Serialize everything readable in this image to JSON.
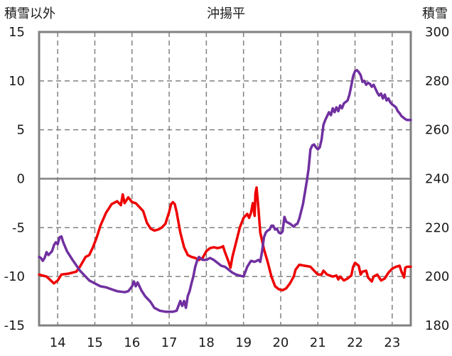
{
  "chart_data": {
    "type": "line",
    "title": "沖揚平",
    "left_axis_label": "積雪以外",
    "right_axis_label": "積雪",
    "x_range": [
      13.5,
      23.5
    ],
    "x_ticks": [
      14,
      15,
      16,
      17,
      18,
      19,
      20,
      21,
      22,
      23
    ],
    "x_tick_labels": [
      "14",
      "15",
      "16",
      "17",
      "18",
      "19",
      "20",
      "21",
      "22",
      "23"
    ],
    "ylim_left": [
      -15,
      15
    ],
    "y_ticks_left": [
      15,
      10,
      5,
      0,
      -5,
      -10,
      -15
    ],
    "y_tick_labels_left": [
      "15",
      "10",
      "5",
      "0",
      "-5",
      "-10",
      "-15"
    ],
    "ylim_right": [
      180,
      300
    ],
    "y_ticks_right": [
      300,
      280,
      260,
      240,
      220,
      200,
      180
    ],
    "y_tick_labels_right": [
      "300",
      "280",
      "260",
      "240",
      "220",
      "200",
      "180"
    ],
    "grid": {
      "vertical": "dashed",
      "horizontal": "dashed",
      "zero_line": "solid"
    },
    "series": [
      {
        "axis": "left",
        "color": "#ee0000",
        "points": [
          [
            13.5,
            -9.8
          ],
          [
            13.7,
            -10.0
          ],
          [
            13.9,
            -10.7
          ],
          [
            14.0,
            -10.4
          ],
          [
            14.1,
            -9.8
          ],
          [
            14.3,
            -9.7
          ],
          [
            14.5,
            -9.5
          ],
          [
            14.6,
            -9.0
          ],
          [
            14.75,
            -8.0
          ],
          [
            14.85,
            -7.8
          ],
          [
            14.95,
            -7.0
          ],
          [
            15.05,
            -6.0
          ],
          [
            15.15,
            -4.8
          ],
          [
            15.3,
            -3.5
          ],
          [
            15.45,
            -2.6
          ],
          [
            15.6,
            -2.3
          ],
          [
            15.7,
            -2.7
          ],
          [
            15.75,
            -1.6
          ],
          [
            15.8,
            -2.5
          ],
          [
            15.9,
            -1.9
          ],
          [
            16.0,
            -2.4
          ],
          [
            16.1,
            -2.5
          ],
          [
            16.2,
            -2.9
          ],
          [
            16.3,
            -3.3
          ],
          [
            16.4,
            -4.5
          ],
          [
            16.5,
            -5.1
          ],
          [
            16.6,
            -5.3
          ],
          [
            16.7,
            -5.2
          ],
          [
            16.8,
            -5.0
          ],
          [
            16.9,
            -4.6
          ],
          [
            17.0,
            -3.4
          ],
          [
            17.05,
            -2.6
          ],
          [
            17.1,
            -2.4
          ],
          [
            17.15,
            -2.6
          ],
          [
            17.2,
            -3.4
          ],
          [
            17.3,
            -5.5
          ],
          [
            17.4,
            -7.0
          ],
          [
            17.5,
            -7.8
          ],
          [
            17.6,
            -8.0
          ],
          [
            17.7,
            -8.1
          ],
          [
            17.8,
            -8.3
          ],
          [
            17.9,
            -8.1
          ],
          [
            18.0,
            -7.4
          ],
          [
            18.1,
            -7.1
          ],
          [
            18.2,
            -7.0
          ],
          [
            18.3,
            -7.1
          ],
          [
            18.4,
            -7.0
          ],
          [
            18.45,
            -6.9
          ],
          [
            18.5,
            -7.5
          ],
          [
            18.6,
            -8.5
          ],
          [
            18.65,
            -9.1
          ],
          [
            18.7,
            -8.0
          ],
          [
            18.8,
            -6.5
          ],
          [
            18.9,
            -5.0
          ],
          [
            19.0,
            -4.0
          ],
          [
            19.1,
            -3.6
          ],
          [
            19.15,
            -4.0
          ],
          [
            19.2,
            -3.5
          ],
          [
            19.25,
            -2.5
          ],
          [
            19.3,
            -3.8
          ],
          [
            19.32,
            -1.5
          ],
          [
            19.35,
            -0.9
          ],
          [
            19.4,
            -3.0
          ],
          [
            19.45,
            -5.5
          ],
          [
            19.55,
            -7.2
          ],
          [
            19.65,
            -8.5
          ],
          [
            19.75,
            -10.0
          ],
          [
            19.85,
            -11.0
          ],
          [
            19.95,
            -11.3
          ],
          [
            20.05,
            -11.4
          ],
          [
            20.15,
            -11.2
          ],
          [
            20.25,
            -10.7
          ],
          [
            20.35,
            -10.0
          ],
          [
            20.4,
            -9.3
          ],
          [
            20.5,
            -8.8
          ],
          [
            20.65,
            -8.9
          ],
          [
            20.8,
            -9.0
          ],
          [
            20.9,
            -9.4
          ],
          [
            21.0,
            -9.8
          ],
          [
            21.1,
            -9.8
          ],
          [
            21.15,
            -9.4
          ],
          [
            21.25,
            -9.8
          ],
          [
            21.4,
            -10.0
          ],
          [
            21.5,
            -9.9
          ],
          [
            21.55,
            -10.3
          ],
          [
            21.6,
            -10.0
          ],
          [
            21.7,
            -10.4
          ],
          [
            21.8,
            -10.2
          ],
          [
            21.9,
            -9.9
          ],
          [
            21.95,
            -9.0
          ],
          [
            22.0,
            -8.6
          ],
          [
            22.1,
            -8.9
          ],
          [
            22.15,
            -9.8
          ],
          [
            22.2,
            -9.5
          ],
          [
            22.3,
            -9.4
          ],
          [
            22.35,
            -10.1
          ],
          [
            22.4,
            -10.3
          ],
          [
            22.45,
            -10.5
          ],
          [
            22.5,
            -10.0
          ],
          [
            22.6,
            -9.8
          ],
          [
            22.7,
            -10.4
          ],
          [
            22.8,
            -10.2
          ],
          [
            22.9,
            -9.6
          ],
          [
            23.0,
            -9.2
          ],
          [
            23.1,
            -9.0
          ],
          [
            23.2,
            -8.9
          ],
          [
            23.25,
            -9.5
          ],
          [
            23.3,
            -9.9
          ],
          [
            23.32,
            -10.1
          ],
          [
            23.35,
            -9.1
          ],
          [
            23.4,
            -9.0
          ],
          [
            23.5,
            -9.0
          ]
        ]
      },
      {
        "axis": "left",
        "color": "#7030a0",
        "points": [
          [
            13.5,
            -8.0
          ],
          [
            13.55,
            -8.1
          ],
          [
            13.6,
            -8.4
          ],
          [
            13.65,
            -8.1
          ],
          [
            13.7,
            -7.5
          ],
          [
            13.75,
            -7.8
          ],
          [
            13.85,
            -7.4
          ],
          [
            13.9,
            -6.8
          ],
          [
            13.95,
            -6.5
          ],
          [
            14.0,
            -6.7
          ],
          [
            14.05,
            -6.0
          ],
          [
            14.1,
            -5.9
          ],
          [
            14.15,
            -6.5
          ],
          [
            14.25,
            -7.4
          ],
          [
            14.4,
            -8.3
          ],
          [
            14.6,
            -9.4
          ],
          [
            14.75,
            -10.0
          ],
          [
            14.85,
            -10.4
          ],
          [
            15.0,
            -10.7
          ],
          [
            15.15,
            -11.0
          ],
          [
            15.3,
            -11.1
          ],
          [
            15.45,
            -11.3
          ],
          [
            15.6,
            -11.5
          ],
          [
            15.8,
            -11.6
          ],
          [
            15.9,
            -11.5
          ],
          [
            16.0,
            -11.0
          ],
          [
            16.05,
            -10.5
          ],
          [
            16.1,
            -11.0
          ],
          [
            16.15,
            -10.6
          ],
          [
            16.25,
            -11.4
          ],
          [
            16.35,
            -12.0
          ],
          [
            16.5,
            -12.6
          ],
          [
            16.6,
            -13.2
          ],
          [
            16.75,
            -13.5
          ],
          [
            16.9,
            -13.6
          ],
          [
            17.0,
            -13.6
          ],
          [
            17.1,
            -13.6
          ],
          [
            17.2,
            -13.5
          ],
          [
            17.3,
            -12.5
          ],
          [
            17.35,
            -13.0
          ],
          [
            17.4,
            -12.5
          ],
          [
            17.45,
            -13.2
          ],
          [
            17.5,
            -12.0
          ],
          [
            17.55,
            -11.5
          ],
          [
            17.6,
            -10.7
          ],
          [
            17.65,
            -10.0
          ],
          [
            17.7,
            -9.0
          ],
          [
            17.75,
            -8.4
          ],
          [
            17.8,
            -8.0
          ],
          [
            17.9,
            -8.3
          ],
          [
            18.0,
            -8.3
          ],
          [
            18.1,
            -8.1
          ],
          [
            18.2,
            -8.3
          ],
          [
            18.3,
            -8.6
          ],
          [
            18.4,
            -8.9
          ],
          [
            18.5,
            -9.0
          ],
          [
            18.6,
            -9.3
          ],
          [
            18.7,
            -9.6
          ],
          [
            18.8,
            -9.8
          ],
          [
            18.9,
            -9.9
          ],
          [
            19.0,
            -10.0
          ],
          [
            19.1,
            -9.0
          ],
          [
            19.2,
            -8.4
          ],
          [
            19.3,
            -8.5
          ],
          [
            19.4,
            -8.3
          ],
          [
            19.45,
            -8.5
          ],
          [
            19.5,
            -7.4
          ],
          [
            19.55,
            -6.0
          ],
          [
            19.6,
            -5.5
          ],
          [
            19.65,
            -5.3
          ],
          [
            19.7,
            -5.2
          ],
          [
            19.75,
            -4.8
          ],
          [
            19.8,
            -4.8
          ],
          [
            19.85,
            -5.2
          ],
          [
            19.9,
            -5.1
          ],
          [
            19.95,
            -5.5
          ],
          [
            20.0,
            -5.6
          ],
          [
            20.05,
            -5.4
          ],
          [
            20.1,
            -3.9
          ],
          [
            20.15,
            -4.4
          ],
          [
            20.25,
            -4.6
          ],
          [
            20.35,
            -4.9
          ],
          [
            20.4,
            -4.7
          ],
          [
            20.45,
            -4.6
          ],
          [
            20.5,
            -4.1
          ],
          [
            20.6,
            -2.6
          ],
          [
            20.7,
            -0.3
          ],
          [
            20.75,
            1.0
          ],
          [
            20.8,
            3.0
          ],
          [
            20.85,
            3.4
          ],
          [
            20.9,
            3.5
          ],
          [
            20.95,
            3.2
          ],
          [
            21.0,
            3.0
          ],
          [
            21.05,
            3.2
          ],
          [
            21.1,
            4.0
          ],
          [
            21.15,
            5.5
          ],
          [
            21.2,
            6.0
          ],
          [
            21.3,
            6.8
          ],
          [
            21.35,
            6.5
          ],
          [
            21.4,
            7.2
          ],
          [
            21.45,
            6.8
          ],
          [
            21.5,
            7.3
          ],
          [
            21.55,
            6.9
          ],
          [
            21.6,
            7.5
          ],
          [
            21.65,
            7.2
          ],
          [
            21.7,
            7.7
          ],
          [
            21.8,
            8.0
          ],
          [
            21.85,
            8.6
          ],
          [
            21.9,
            9.5
          ],
          [
            21.95,
            10.5
          ],
          [
            22.0,
            11.0
          ],
          [
            22.05,
            11.1
          ],
          [
            22.1,
            10.9
          ],
          [
            22.15,
            10.6
          ],
          [
            22.2,
            9.9
          ],
          [
            22.25,
            10.0
          ],
          [
            22.3,
            9.6
          ],
          [
            22.35,
            9.8
          ],
          [
            22.4,
            9.7
          ],
          [
            22.45,
            9.4
          ],
          [
            22.5,
            9.6
          ],
          [
            22.55,
            9.2
          ],
          [
            22.6,
            8.8
          ],
          [
            22.65,
            8.5
          ],
          [
            22.7,
            8.7
          ],
          [
            22.75,
            8.2
          ],
          [
            22.8,
            8.6
          ],
          [
            22.85,
            8.0
          ],
          [
            22.9,
            8.2
          ],
          [
            22.95,
            7.8
          ],
          [
            23.0,
            7.6
          ],
          [
            23.1,
            7.3
          ],
          [
            23.15,
            6.9
          ],
          [
            23.2,
            6.7
          ],
          [
            23.25,
            6.4
          ],
          [
            23.35,
            6.1
          ],
          [
            23.4,
            6.0
          ],
          [
            23.5,
            6.0
          ]
        ]
      }
    ]
  }
}
